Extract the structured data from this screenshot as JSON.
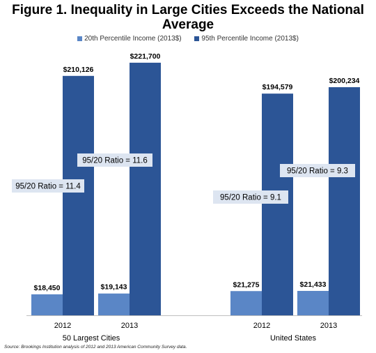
{
  "chart_data": {
    "type": "bar",
    "title": "Figure 1. Inequality in Large Cities Exceeds the National Average",
    "xlabel": "",
    "ylabel": "",
    "ylim": [
      0,
      240000
    ],
    "grid": false,
    "legend_position": "top",
    "colors": {
      "p20": "#5a86c6",
      "p95": "#2c5596",
      "ratio_box": "#dde5f1"
    },
    "series": [
      {
        "name": "20th Percentile Income (2013$)",
        "key": "p20"
      },
      {
        "name": "95th Percentile Income (2013$)",
        "key": "p95"
      }
    ],
    "groups": [
      {
        "name": "50 Largest Cities",
        "bars": [
          {
            "year": "2012",
            "p20": 18450,
            "p95": 210126,
            "p20_label": "$18,450",
            "p95_label": "$210,126",
            "ratio_label": "95/20 Ratio = 11.4"
          },
          {
            "year": "2013",
            "p20": 19143,
            "p95": 221700,
            "p20_label": "$19,143",
            "p95_label": "$221,700",
            "ratio_label": "95/20 Ratio = 11.6"
          }
        ]
      },
      {
        "name": "United States",
        "bars": [
          {
            "year": "2012",
            "p20": 21275,
            "p95": 194579,
            "p20_label": "$21,275",
            "p95_label": "$194,579",
            "ratio_label": "95/20 Ratio = 9.1"
          },
          {
            "year": "2013",
            "p20": 21433,
            "p95": 200234,
            "p20_label": "$21,433",
            "p95_label": "$200,234",
            "ratio_label": "95/20 Ratio = 9.3"
          }
        ]
      }
    ],
    "source": "Source: Brookings Institution analysis of 2012 and 2013 American Community Survey data."
  }
}
